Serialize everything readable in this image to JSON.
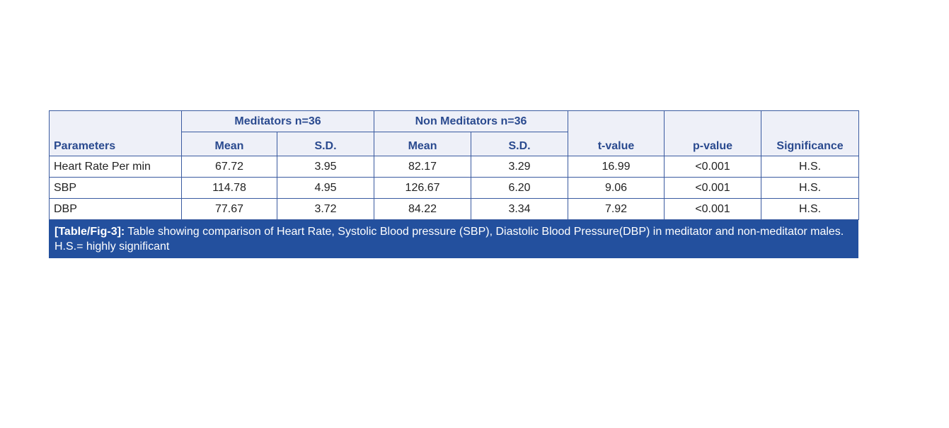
{
  "table": {
    "header": {
      "parameters": "Parameters",
      "groups": [
        "Meditators n=36",
        "Non Meditators n=36"
      ],
      "subheaders": [
        "Mean",
        "S.D.",
        "Mean",
        "S.D."
      ],
      "t": "t-value",
      "p": "p-value",
      "significance": "Significance"
    },
    "rows": [
      [
        "Heart Rate Per min",
        "67.72",
        "3.95",
        "82.17",
        "3.29",
        "16.99",
        "<0.001",
        "H.S."
      ],
      [
        "SBP",
        "114.78",
        "4.95",
        "126.67",
        "6.20",
        "9.06",
        "<0.001",
        "H.S."
      ],
      [
        "DBP",
        "77.67",
        "3.72",
        "84.22",
        "3.34",
        "7.92",
        "<0.001",
        "H.S."
      ]
    ]
  },
  "caption": {
    "label": "[Table/Fig-3]:",
    "text": "Table showing comparison of Heart Rate, Systolic Blood pressure (SBP), Diastolic Blood Pressure(DBP) in meditator and non-meditator males. H.S.= highly significant"
  }
}
